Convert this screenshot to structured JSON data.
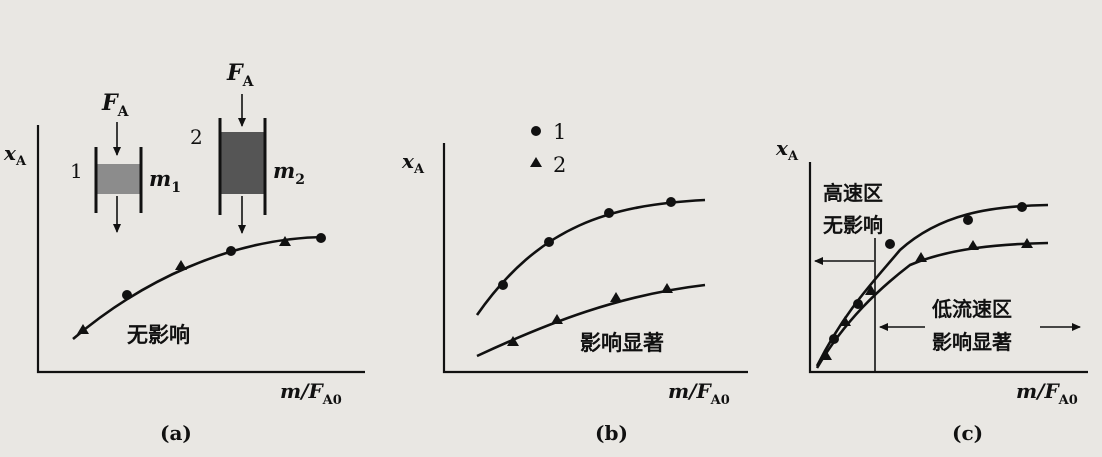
{
  "axis_y_main": "x",
  "axis_y_sub": "A",
  "axis_x_main": "m/F",
  "axis_x_sub": "A0",
  "force_main": "F",
  "force_sub": "A",
  "panels": {
    "a": {
      "caption": "(a)",
      "note": "无影响",
      "reactor1": {
        "number": "1",
        "mass_main": "m",
        "mass_sub": "1"
      },
      "reactor2": {
        "number": "2",
        "mass_main": "m",
        "mass_sub": "2"
      }
    },
    "b": {
      "caption": "(b)",
      "note": "影响显著",
      "legend": [
        {
          "marker": "circle",
          "label": "1"
        },
        {
          "marker": "triangle",
          "label": "2"
        }
      ]
    },
    "c": {
      "caption": "(c)",
      "region_high_line1": "高速区",
      "region_high_line2": "无影响",
      "region_low_line1": "低流速区",
      "region_low_line2": "影响显著"
    }
  },
  "colors": {
    "ink": "#111111",
    "paper": "#e9e7e3",
    "catalyst_light": "#8c8c8c",
    "catalyst_dark": "#555555"
  }
}
